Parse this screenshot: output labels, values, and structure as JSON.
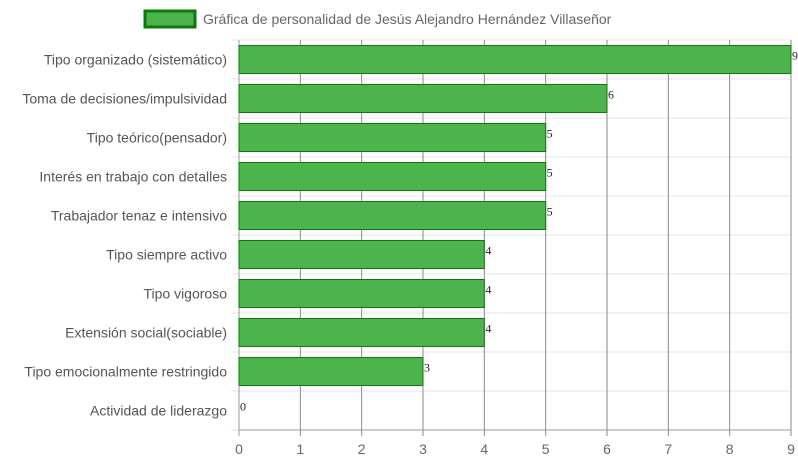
{
  "chart_data": {
    "type": "bar",
    "orientation": "horizontal",
    "categories": [
      "Tipo organizado (sistemático)",
      "Toma de decisiones/impulsividad",
      "Tipo teórico(pensador)",
      "Interés en trabajo con detalles",
      "Trabajador tenaz e intensivo",
      "Tipo siempre activo",
      "Tipo vigoroso",
      "Extensión social(sociable)",
      "Tipo emocionalmente restringido",
      "Actividad de liderazgo"
    ],
    "series": [
      {
        "name": "Gráfica de personalidad de Jesús Alejandro Hernández Villaseñor",
        "values": [
          9,
          6,
          5,
          5,
          5,
          4,
          4,
          4,
          3,
          0
        ]
      }
    ],
    "xlim": [
      0,
      9
    ],
    "xticks": [
      "0",
      "1",
      "2",
      "3",
      "4",
      "5",
      "6",
      "7",
      "8",
      "9"
    ],
    "grid": true,
    "legend_position": "top",
    "data_labels": true,
    "colors": {
      "bar_fill": "#4db34d",
      "bar_border": "#0a7a0a"
    }
  }
}
